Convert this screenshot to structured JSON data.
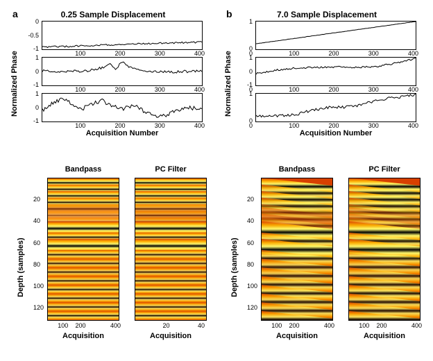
{
  "columns": [
    {
      "label": "a",
      "title": "0.25 Sample Displacement",
      "y_axis_label": "Normalized Phase",
      "x_axis_label": "Acquisition Number",
      "line_charts": [
        {
          "ylim": [
            -1,
            0
          ],
          "yticks": [
            0,
            -0.5,
            -1
          ],
          "xlim": [
            0,
            400
          ],
          "xticks": [
            100,
            200,
            300,
            400
          ],
          "points": [
            [
              0,
              -0.92
            ],
            [
              50,
              -0.9
            ],
            [
              100,
              -0.88
            ],
            [
              150,
              -0.85
            ],
            [
              200,
              -0.82
            ],
            [
              250,
              -0.8
            ],
            [
              300,
              -0.78
            ],
            [
              350,
              -0.76
            ],
            [
              400,
              -0.74
            ]
          ],
          "noise": 0.03
        },
        {
          "ylim": [
            -1,
            1
          ],
          "yticks": [
            1,
            0,
            -1
          ],
          "xlim": [
            0,
            400
          ],
          "xticks": [
            100,
            200,
            300,
            400
          ],
          "points": [
            [
              0,
              0.05
            ],
            [
              50,
              0.0
            ],
            [
              100,
              0.05
            ],
            [
              130,
              0.1
            ],
            [
              150,
              0.3
            ],
            [
              170,
              0.55
            ],
            [
              185,
              0.2
            ],
            [
              200,
              0.75
            ],
            [
              210,
              0.55
            ],
            [
              225,
              0.2
            ],
            [
              250,
              0.0
            ],
            [
              300,
              -0.05
            ],
            [
              350,
              0.0
            ],
            [
              400,
              0.05
            ]
          ],
          "noise": 0.1
        },
        {
          "ylim": [
            -1,
            1
          ],
          "yticks": [
            1,
            0,
            -1
          ],
          "xlim": [
            0,
            400
          ],
          "xticks": [
            100,
            200,
            300,
            400
          ],
          "points": [
            [
              0,
              -0.2
            ],
            [
              30,
              0.4
            ],
            [
              55,
              0.7
            ],
            [
              75,
              0.2
            ],
            [
              100,
              -0.1
            ],
            [
              125,
              0.3
            ],
            [
              150,
              0.5
            ],
            [
              175,
              0.1
            ],
            [
              200,
              -0.1
            ],
            [
              230,
              0.15
            ],
            [
              260,
              -0.35
            ],
            [
              300,
              -0.65
            ],
            [
              330,
              -0.3
            ],
            [
              360,
              0.0
            ],
            [
              400,
              -0.1
            ]
          ],
          "noise": 0.15
        }
      ],
      "hm_y_label": "Depth (samples)",
      "hm_x_label": "Acquisition",
      "hm_yticks": [
        20,
        40,
        60,
        80,
        100,
        120
      ],
      "heatmaps": [
        {
          "title": "Bandpass",
          "xticks": [
            100,
            200,
            400
          ],
          "xmax": 400,
          "skew": 0.0,
          "noise_band": [
            30,
            44
          ],
          "bands": [
            {
              "d": 4,
              "w": 2,
              "a": 1.0
            },
            {
              "d": 10,
              "w": 2,
              "a": 0.9
            },
            {
              "d": 16,
              "w": 2,
              "a": 0.95
            },
            {
              "d": 22,
              "w": 2,
              "a": 0.9
            },
            {
              "d": 28,
              "w": 2,
              "a": 0.5
            },
            {
              "d": 34,
              "w": 2,
              "a": 0.4
            },
            {
              "d": 40,
              "w": 2,
              "a": 0.5
            },
            {
              "d": 46,
              "w": 3,
              "a": 1.0
            },
            {
              "d": 54,
              "w": 2,
              "a": 0.9
            },
            {
              "d": 62,
              "w": 3,
              "a": 1.0
            },
            {
              "d": 70,
              "w": 2,
              "a": 0.85
            },
            {
              "d": 78,
              "w": 2,
              "a": 0.8
            },
            {
              "d": 86,
              "w": 2,
              "a": 0.8
            },
            {
              "d": 94,
              "w": 2,
              "a": 0.85
            },
            {
              "d": 102,
              "w": 2,
              "a": 0.9
            },
            {
              "d": 110,
              "w": 2,
              "a": 0.85
            },
            {
              "d": 118,
              "w": 2,
              "a": 0.85
            },
            {
              "d": 126,
              "w": 2,
              "a": 0.9
            }
          ]
        },
        {
          "title": "PC Filter",
          "xticks": [
            20,
            40
          ],
          "xmax": 40,
          "skew": 0.0,
          "noise_band": null,
          "bands": [
            {
              "d": 4,
              "w": 2,
              "a": 1.0
            },
            {
              "d": 10,
              "w": 2,
              "a": 0.95
            },
            {
              "d": 16,
              "w": 2,
              "a": 0.95
            },
            {
              "d": 22,
              "w": 2,
              "a": 0.9
            },
            {
              "d": 28,
              "w": 2,
              "a": 0.6
            },
            {
              "d": 34,
              "w": 2,
              "a": 0.55
            },
            {
              "d": 40,
              "w": 2,
              "a": 0.6
            },
            {
              "d": 46,
              "w": 3,
              "a": 1.0
            },
            {
              "d": 54,
              "w": 2,
              "a": 0.9
            },
            {
              "d": 62,
              "w": 3,
              "a": 1.0
            },
            {
              "d": 70,
              "w": 2,
              "a": 0.85
            },
            {
              "d": 78,
              "w": 2,
              "a": 0.8
            },
            {
              "d": 86,
              "w": 2,
              "a": 0.8
            },
            {
              "d": 94,
              "w": 2,
              "a": 0.85
            },
            {
              "d": 102,
              "w": 2,
              "a": 0.9
            },
            {
              "d": 110,
              "w": 2,
              "a": 0.85
            },
            {
              "d": 118,
              "w": 2,
              "a": 0.85
            },
            {
              "d": 126,
              "w": 2,
              "a": 0.9
            }
          ]
        }
      ]
    },
    {
      "label": "b",
      "title": "7.0 Sample Displacement",
      "y_axis_label": "Normalized Phase",
      "x_axis_label": "Acquisition Number",
      "line_charts": [
        {
          "ylim": [
            0,
            1
          ],
          "yticks": [
            1,
            0
          ],
          "xlim": [
            0,
            400
          ],
          "xticks": [
            0,
            100,
            200,
            300,
            400
          ],
          "points": [
            [
              0,
              0.2
            ],
            [
              100,
              0.4
            ],
            [
              200,
              0.6
            ],
            [
              300,
              0.8
            ],
            [
              400,
              1.0
            ]
          ],
          "noise": 0.005
        },
        {
          "ylim": [
            -1,
            1
          ],
          "yticks": [
            1,
            0,
            -1
          ],
          "xlim": [
            0,
            400
          ],
          "xticks": [
            0,
            100,
            200,
            300,
            400
          ],
          "points": [
            [
              0,
              -0.15
            ],
            [
              50,
              0.1
            ],
            [
              100,
              0.25
            ],
            [
              150,
              0.3
            ],
            [
              200,
              0.33
            ],
            [
              250,
              0.3
            ],
            [
              300,
              0.35
            ],
            [
              350,
              0.6
            ],
            [
              400,
              0.95
            ]
          ],
          "noise": 0.06
        },
        {
          "ylim": [
            0,
            1
          ],
          "yticks": [
            1,
            0
          ],
          "xlim": [
            0,
            400
          ],
          "xticks": [
            0,
            100,
            200,
            300,
            400
          ],
          "points": [
            [
              0,
              0.18
            ],
            [
              60,
              0.2
            ],
            [
              100,
              0.25
            ],
            [
              140,
              0.4
            ],
            [
              180,
              0.5
            ],
            [
              220,
              0.52
            ],
            [
              260,
              0.58
            ],
            [
              300,
              0.75
            ],
            [
              340,
              0.85
            ],
            [
              380,
              0.92
            ],
            [
              400,
              0.95
            ]
          ],
          "noise": 0.05
        }
      ],
      "hm_y_label": "Depth (samples)",
      "hm_x_label": "Acquisition",
      "hm_yticks": [
        20,
        40,
        60,
        80,
        100,
        120
      ],
      "heatmaps": [
        {
          "title": "Bandpass",
          "xticks": [
            100,
            200,
            400
          ],
          "xmax": 400,
          "skew": 7.0,
          "noise_band": null,
          "bands": [
            {
              "d": 4,
              "w": 2,
              "a": 1.0
            },
            {
              "d": 10,
              "w": 2,
              "a": 0.9
            },
            {
              "d": 16,
              "w": 2,
              "a": 0.95
            },
            {
              "d": 22,
              "w": 2,
              "a": 0.9
            },
            {
              "d": 28,
              "w": 2,
              "a": 0.5
            },
            {
              "d": 34,
              "w": 2,
              "a": 0.4
            },
            {
              "d": 40,
              "w": 2,
              "a": 0.5
            },
            {
              "d": 46,
              "w": 3,
              "a": 1.0
            },
            {
              "d": 54,
              "w": 2,
              "a": 0.9
            },
            {
              "d": 62,
              "w": 3,
              "a": 1.0
            },
            {
              "d": 70,
              "w": 2,
              "a": 0.85
            },
            {
              "d": 78,
              "w": 2,
              "a": 0.8
            },
            {
              "d": 86,
              "w": 2,
              "a": 0.8
            },
            {
              "d": 94,
              "w": 2,
              "a": 0.85
            },
            {
              "d": 102,
              "w": 2,
              "a": 0.9
            },
            {
              "d": 110,
              "w": 2,
              "a": 0.85
            },
            {
              "d": 118,
              "w": 2,
              "a": 0.85
            },
            {
              "d": 126,
              "w": 2,
              "a": 0.9
            }
          ]
        },
        {
          "title": "PC Filter",
          "xticks": [
            100,
            200,
            400
          ],
          "xmax": 400,
          "skew": 7.0,
          "noise_band": null,
          "bands": [
            {
              "d": 4,
              "w": 2,
              "a": 1.0
            },
            {
              "d": 10,
              "w": 2,
              "a": 0.95
            },
            {
              "d": 16,
              "w": 2,
              "a": 0.95
            },
            {
              "d": 22,
              "w": 2,
              "a": 0.9
            },
            {
              "d": 28,
              "w": 2,
              "a": 0.6
            },
            {
              "d": 34,
              "w": 2,
              "a": 0.55
            },
            {
              "d": 40,
              "w": 2,
              "a": 0.6
            },
            {
              "d": 46,
              "w": 3,
              "a": 1.0
            },
            {
              "d": 54,
              "w": 2,
              "a": 0.9
            },
            {
              "d": 62,
              "w": 3,
              "a": 1.0
            },
            {
              "d": 70,
              "w": 2,
              "a": 0.85
            },
            {
              "d": 78,
              "w": 2,
              "a": 0.8
            },
            {
              "d": 86,
              "w": 2,
              "a": 0.8
            },
            {
              "d": 94,
              "w": 2,
              "a": 0.85
            },
            {
              "d": 102,
              "w": 2,
              "a": 0.9
            },
            {
              "d": 110,
              "w": 2,
              "a": 0.85
            },
            {
              "d": 118,
              "w": 2,
              "a": 0.85
            },
            {
              "d": 126,
              "w": 2,
              "a": 0.9
            }
          ]
        }
      ]
    }
  ],
  "style": {
    "line_color": "#000000",
    "line_width": 1,
    "hm_depth_max": 130,
    "hm_grad_stops": [
      [
        0.0,
        "#8b0000"
      ],
      [
        0.15,
        "#d62728"
      ],
      [
        0.35,
        "#ff6a00"
      ],
      [
        0.5,
        "#ffc100"
      ],
      [
        0.65,
        "#fff97a"
      ],
      [
        0.85,
        "#ffffe0"
      ],
      [
        1.0,
        "#ffffff"
      ]
    ],
    "hm_dark_fade": [
      "#000000",
      "#3a0000"
    ]
  }
}
